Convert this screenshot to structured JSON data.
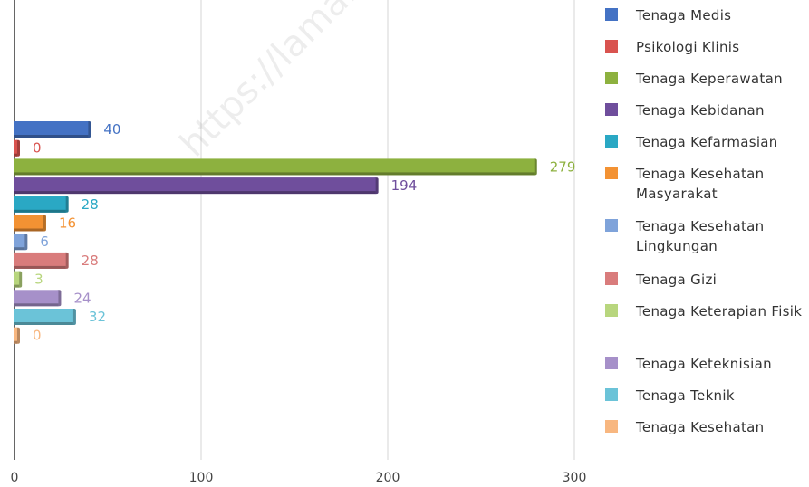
{
  "chart_data": {
    "type": "bar",
    "orientation": "horizontal",
    "xlim": [
      0,
      300
    ],
    "x_ticks": [
      "0",
      "100",
      "200",
      "300"
    ],
    "grid": true,
    "legend_position": "right",
    "series": [
      {
        "name": "Tenaga Medis",
        "value": 40,
        "color": "#4472C4"
      },
      {
        "name": "Psikologi Klinis",
        "value": 0,
        "color": "#D9534F"
      },
      {
        "name": "Tenaga Keperawatan",
        "value": 279,
        "color": "#8DB13F"
      },
      {
        "name": "Tenaga Kebidanan",
        "value": 194,
        "color": "#6F4E9C"
      },
      {
        "name": "Tenaga Kefarmasian",
        "value": 28,
        "color": "#2AA8C4"
      },
      {
        "name": "Tenaga Kesehatan Masyarakat",
        "value": 16,
        "color": "#F39233"
      },
      {
        "name": "Tenaga Kesehatan Lingkungan",
        "value": 6,
        "color": "#7FA3DA"
      },
      {
        "name": "Tenaga Gizi",
        "value": 28,
        "color": "#D97C7C"
      },
      {
        "name": "Tenaga Keterapian Fisik",
        "value": 3,
        "color": "#B8D67E"
      },
      {
        "name": "Tenaga Keteknisian",
        "value": 24,
        "color": "#A690C9"
      },
      {
        "name": "Tenaga Teknik",
        "value": 32,
        "color": "#6BC3D8"
      },
      {
        "name": "Tenaga Kesehatan",
        "value": 0,
        "color": "#F8B780"
      }
    ]
  },
  "watermark": "https://lamandaukab.go.id"
}
